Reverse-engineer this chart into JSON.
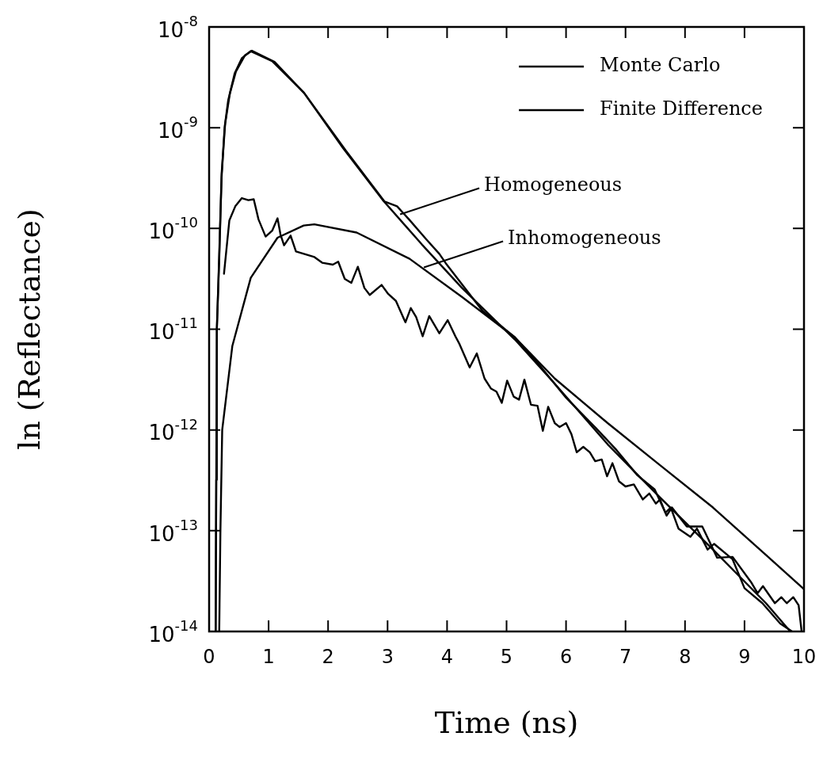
{
  "chart_data": {
    "type": "line",
    "xlabel": "Time (ns)",
    "ylabel": "ln (Reflectance)",
    "log": true,
    "legend": "top right",
    "marker": "none",
    "line_style": "solid",
    "xlim": [
      0,
      10
    ],
    "xticks": [
      0,
      1,
      2,
      3,
      4,
      5,
      6,
      7,
      8,
      9,
      10
    ],
    "ylim": [
      1e-14,
      1e-08
    ],
    "yticks": [
      {
        "value": 1e-14,
        "label": "10$^{-14}$"
      },
      {
        "value": 1e-13,
        "label": "10$^{-13}$"
      },
      {
        "value": 1e-12,
        "label": "10$^{-12}$"
      },
      {
        "value": 1e-11,
        "label": "10$^{-11}$"
      },
      {
        "value": 1e-10,
        "label": "10$^{-10}$"
      },
      {
        "value": 1e-09,
        "label": "10$^{-9}$"
      },
      {
        "value": 1e-08,
        "label": "10$^{-8}$"
      }
    ],
    "annotations": [
      {
        "text": "Homogeneous",
        "x": 3.21,
        "y": 1.38e-10
      },
      {
        "text": "Inhomogeneous",
        "x": 3.61,
        "y": 4.1e-11
      }
    ],
    "series": [
      {
        "name": "Monte Carlo",
        "color": "#000000",
        "x": [
          0.11,
          0.13,
          0.17,
          0.21,
          0.27,
          0.35,
          0.45,
          0.6,
          0.72,
          1.1,
          1.6,
          2.3,
          2.95,
          3.16,
          3.36,
          3.65,
          3.87,
          3.98,
          4.6,
          5.14,
          5.5,
          6.0,
          6.5,
          6.85,
          7.2,
          7.49,
          7.67,
          7.76,
          7.89,
          8.09,
          8.2,
          8.38,
          8.49,
          8.8,
          9.0,
          9.3,
          9.6,
          9.8
        ],
        "values": [
          1e-14,
          1e-11,
          5.5e-11,
          3.5e-10,
          1.1e-09,
          2.2e-09,
          3.6e-09,
          5.2e-09,
          5.8e-09,
          4.5e-09,
          2.2e-09,
          5.9e-10,
          1.85e-10,
          1.66e-10,
          1.23e-10,
          7.8e-11,
          5.6e-11,
          4.5e-11,
          1.51e-11,
          8.3e-12,
          4.8e-12,
          2.09e-12,
          1.05e-12,
          6.3e-13,
          3.55e-13,
          2.57e-13,
          1.51e-13,
          1.7e-13,
          1.05e-13,
          8.7e-14,
          1.05e-13,
          6.5e-14,
          7.4e-14,
          5.2e-14,
          2.69e-14,
          1.91e-14,
          1.2e-14,
          1e-14
        ]
      },
      {
        "name": "Finite Difference",
        "color": "#000000",
        "x": [
          0.11,
          0.12,
          0.13,
          0.17,
          0.21,
          0.26,
          0.32,
          0.43,
          0.55,
          0.7,
          1.06,
          1.59,
          2.25,
          2.92,
          3.58,
          4.25,
          5.14,
          5.81,
          6.7,
          7.58,
          8.47,
          9.36,
          9.77
        ],
        "values": [
          1e-14,
          3.2e-13,
          1e-11,
          5e-11,
          3.2e-10,
          1e-09,
          1.86e-09,
          3.47e-09,
          4.9e-09,
          5.75e-09,
          4.57e-09,
          2.24e-09,
          6.3e-10,
          1.91e-10,
          6.9e-11,
          2.57e-11,
          7.9e-12,
          2.88e-12,
          7.2e-13,
          2.14e-13,
          6.5e-14,
          1.91e-14,
          1e-14
        ]
      },
      {
        "color": "#000000",
        "x": [
          0.25,
          0.34,
          0.44,
          0.55,
          0.66,
          0.75,
          0.83,
          0.95,
          1.06,
          1.15,
          1.2,
          1.26,
          1.37,
          1.46,
          1.77,
          1.9,
          2.08,
          2.17,
          2.28,
          2.39,
          2.5,
          2.61,
          2.7,
          2.9,
          3.01,
          3.14,
          3.3,
          3.39,
          3.48,
          3.59,
          3.7,
          3.87,
          4.01,
          4.14,
          4.21,
          4.38,
          4.5,
          4.63,
          4.74,
          4.83,
          4.92,
          5.01,
          5.12,
          5.21,
          5.3,
          5.41,
          5.52,
          5.61,
          5.7,
          5.81,
          5.89,
          6.0,
          6.09,
          6.18,
          6.29,
          6.4,
          6.49,
          6.6,
          6.69,
          6.78,
          6.89,
          7.0,
          7.14,
          7.29,
          7.4,
          7.51,
          7.58,
          7.69,
          7.78,
          8.03,
          8.29,
          8.54,
          8.8,
          9.11,
          9.22,
          9.31,
          9.51,
          9.62,
          9.71,
          9.82,
          9.91,
          9.96
        ],
        "values": [
          3.55e-11,
          1.2e-10,
          1.66e-10,
          2e-10,
          1.91e-10,
          1.95e-10,
          1.23e-10,
          8.3e-11,
          9.5e-11,
          1.26e-10,
          8.7e-11,
          6.8e-11,
          8.5e-11,
          5.9e-11,
          5.2e-11,
          4.57e-11,
          4.37e-11,
          4.68e-11,
          3.16e-11,
          2.88e-11,
          4.17e-11,
          2.57e-11,
          2.19e-11,
          2.75e-11,
          2.24e-11,
          1.91e-11,
          1.17e-11,
          1.62e-11,
          1.32e-11,
          8.5e-12,
          1.35e-11,
          9.1e-12,
          1.23e-11,
          8.5e-12,
          7.1e-12,
          4.17e-12,
          5.75e-12,
          3.24e-12,
          2.57e-12,
          2.4e-12,
          1.86e-12,
          3.09e-12,
          2.14e-12,
          2e-12,
          3.16e-12,
          1.78e-12,
          1.74e-12,
          9.8e-13,
          1.7e-12,
          1.17e-12,
          1.07e-12,
          1.17e-12,
          9.1e-13,
          6e-13,
          6.8e-13,
          6e-13,
          4.9e-13,
          5.1e-13,
          3.47e-13,
          4.68e-13,
          3.09e-13,
          2.75e-13,
          2.88e-13,
          2.04e-13,
          2.34e-13,
          1.86e-13,
          2.04e-13,
          1.41e-13,
          1.7e-13,
          1.1e-13,
          1.1e-13,
          5.4e-14,
          5.5e-14,
          3.09e-14,
          2.4e-14,
          2.82e-14,
          1.91e-14,
          2.19e-14,
          1.91e-14,
          2.19e-14,
          1.82e-14,
          1e-14
        ]
      },
      {
        "color": "#000000",
        "x": [
          0.17,
          0.19,
          0.22,
          0.39,
          0.7,
          1.15,
          1.59,
          1.77,
          2.48,
          3.37,
          4.25,
          5.14,
          5.81,
          6.7,
          7.58,
          8.47,
          9.36,
          10.0
        ],
        "values": [
          1e-14,
          1e-13,
          1e-12,
          6.8e-12,
          3.24e-11,
          8.1e-11,
          1.07e-10,
          1.1e-10,
          9.1e-11,
          5e-11,
          2.09e-11,
          8.3e-12,
          3.24e-12,
          1.17e-12,
          4.47e-13,
          1.7e-13,
          5.75e-14,
          2.63e-14
        ]
      }
    ]
  }
}
